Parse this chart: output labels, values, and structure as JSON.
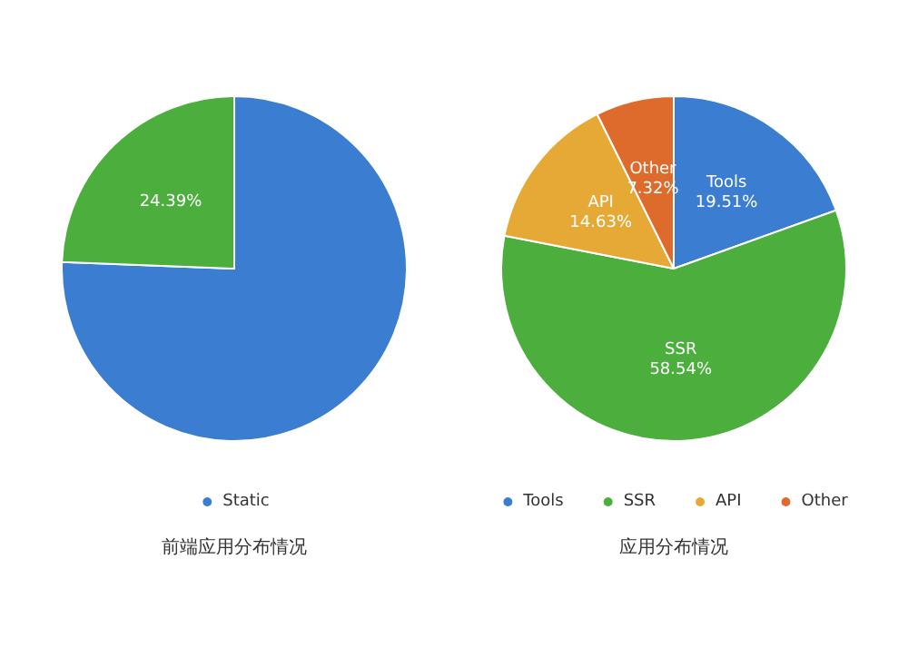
{
  "chart_data": [
    {
      "type": "pie",
      "title": "前端应用分布情况",
      "categories": [
        "Static",
        null
      ],
      "values": [
        75.61,
        24.39
      ],
      "colors": [
        "#3b7dd0",
        "#4cae3c"
      ],
      "value_labels": [
        null,
        "24.39%"
      ],
      "legend": "bottom"
    },
    {
      "type": "pie",
      "title": "应用分布情况",
      "categories": [
        "Tools",
        "SSR",
        "API",
        "Other"
      ],
      "values": [
        19.51,
        58.54,
        14.63,
        7.32
      ],
      "colors": [
        "#3b7dd0",
        "#4cae3c",
        "#e6a935",
        "#de6a2c"
      ],
      "value_labels": [
        "19.51%",
        "58.54%",
        "14.63%",
        "7.32%"
      ],
      "legend": "bottom"
    }
  ]
}
